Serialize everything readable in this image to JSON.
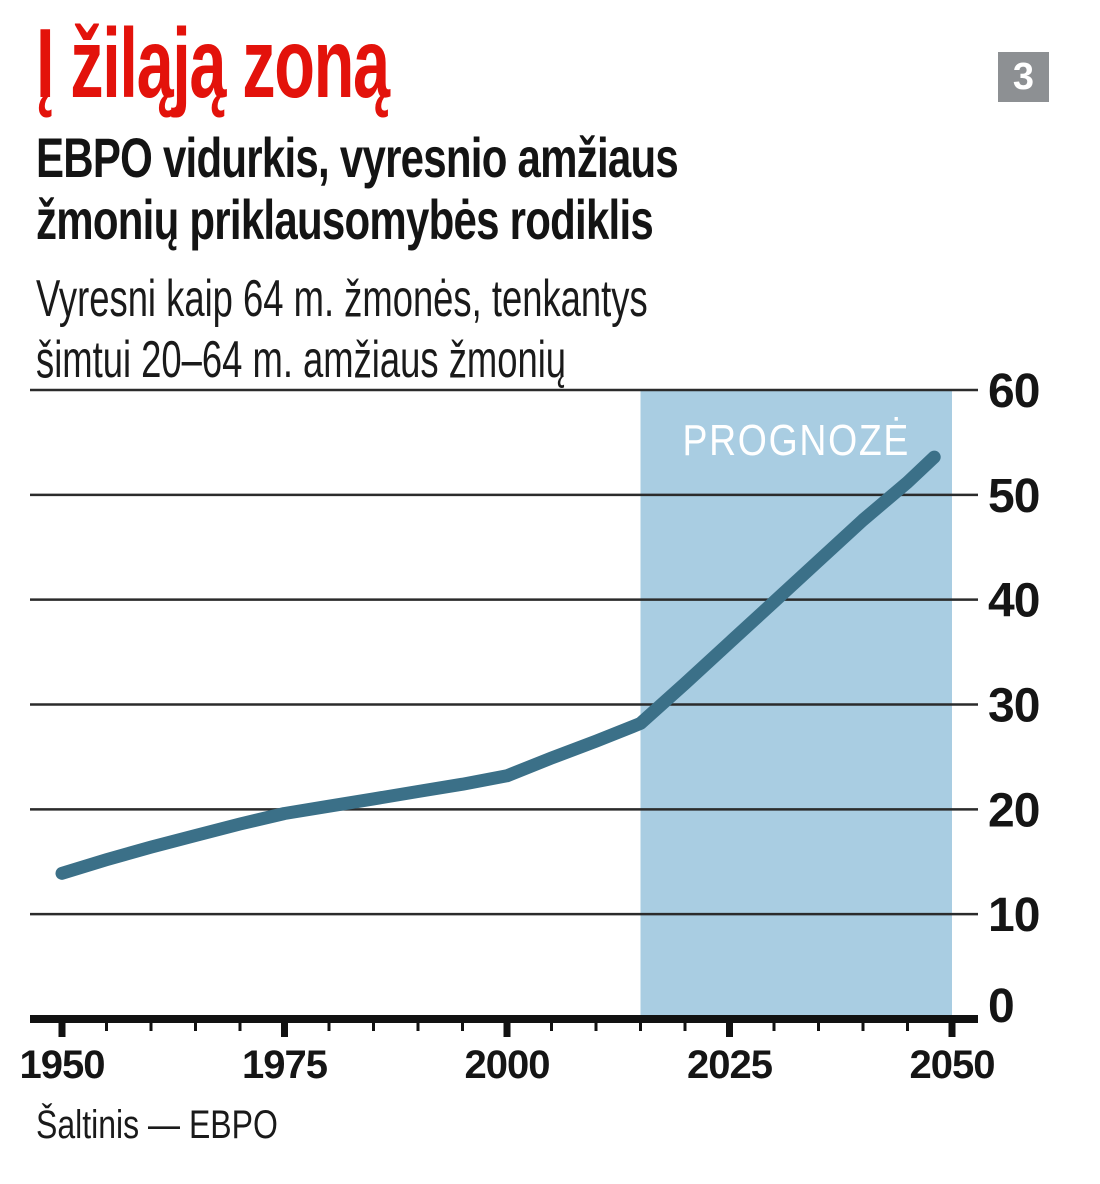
{
  "header": {
    "title": "Į žiląją zoną",
    "title_color": "#e3120b",
    "subtitle_line1": "EBPO vidurkis, vyresnio amžiaus",
    "subtitle_line2": "žmonių priklausomybės rodiklis",
    "description_line1": "Vyresni kaip 64 m. žmonės, tenkantys",
    "description_line2": "šimtui 20–64 m. amžiaus žmonių",
    "badge": "3",
    "badge_bg": "#8d9093"
  },
  "chart_data": {
    "type": "line",
    "title": "Į žiląją zoną",
    "subtitle": "EBPO vidurkis, vyresnio amžiaus žmonių priklausomybės rodiklis",
    "unit_note": "Vyresni kaip 64 m. žmonės, tenkantys šimtui 20–64 m. amžiaus žmonių",
    "x": [
      1950,
      1955,
      1960,
      1965,
      1970,
      1975,
      1980,
      1985,
      1990,
      1995,
      2000,
      2005,
      2010,
      2015,
      2020,
      2025,
      2030,
      2035,
      2040,
      2045,
      2048
    ],
    "values": [
      13.9,
      15.2,
      16.4,
      17.5,
      18.6,
      19.6,
      20.3,
      21.0,
      21.7,
      22.4,
      23.2,
      24.9,
      26.5,
      28.2,
      32.0,
      35.9,
      39.8,
      43.7,
      47.6,
      51.2,
      53.6
    ],
    "series_name": "EBPO vidurkis",
    "forecast_start": 2015,
    "forecast_end": 2050,
    "forecast_label": "PROGNOZĖ",
    "xlim": [
      1950,
      2050
    ],
    "ylim": [
      0,
      60
    ],
    "y_ticks": [
      0,
      10,
      20,
      30,
      40,
      50,
      60
    ],
    "x_ticks": [
      1950,
      1975,
      2000,
      2025,
      2050
    ],
    "x_minor_step": 5,
    "grid": true,
    "legend_position": "none",
    "y_axis_side": "right",
    "line_color": "#3b7088",
    "band_color": "#a9cde2",
    "grid_color": "#2b2b2b",
    "axis_color": "#111111",
    "label_color": "#151515",
    "forecast_label_color": "#ffffff"
  },
  "source": {
    "label": "Šaltinis — EBPO"
  }
}
